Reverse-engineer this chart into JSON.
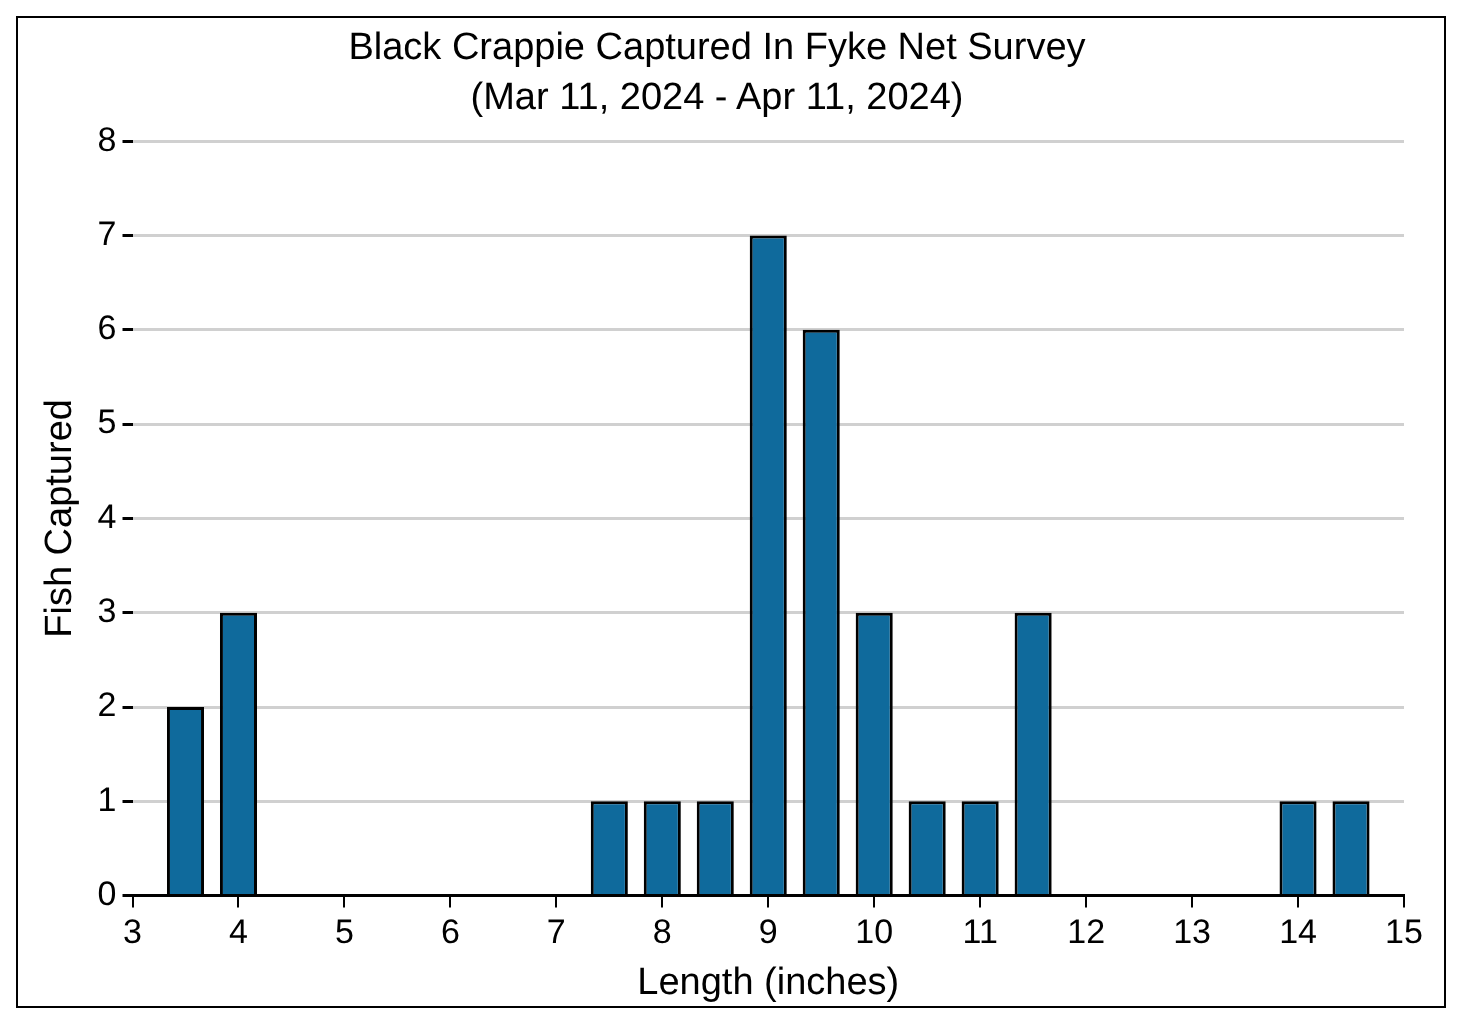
{
  "chart_data": {
    "type": "bar",
    "title": "Black Crappie Captured In Fyke Net Survey",
    "subtitle": "(Mar 11, 2024 - Apr 11, 2024)",
    "xlabel": "Length (inches)",
    "ylabel": "Fish Captured",
    "x": [
      3.5,
      4,
      7.5,
      8,
      8.5,
      9,
      9.5,
      10,
      10.5,
      11,
      11.5,
      14,
      14.5
    ],
    "values": [
      2,
      3,
      1,
      1,
      1,
      7,
      6,
      3,
      1,
      1,
      3,
      1,
      1
    ],
    "color": "#0f6a9c",
    "xlim": [
      3,
      15
    ],
    "xticks": [
      3,
      4,
      5,
      6,
      7,
      8,
      9,
      10,
      11,
      12,
      13,
      14,
      15
    ],
    "ylim": [
      0,
      8
    ],
    "yticks": [
      0,
      1,
      2,
      3,
      4,
      5,
      6,
      7,
      8
    ],
    "grid": "y",
    "legend": false
  }
}
